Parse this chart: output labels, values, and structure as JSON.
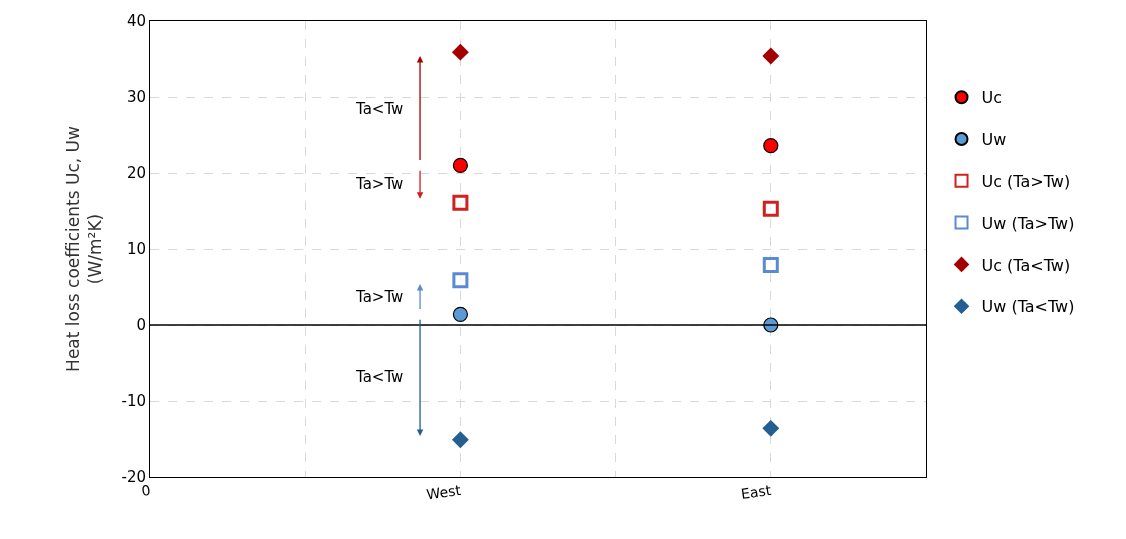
{
  "chart_data": {
    "type": "scatter",
    "ylabel": "Heat loss coefficients Uc, Uw\n(W/m²K)",
    "categories": [
      "0",
      "West",
      "East"
    ],
    "ylim": [
      -20,
      40
    ],
    "yticks": [
      -20,
      -10,
      0,
      10,
      20,
      30,
      40
    ],
    "grid": true,
    "legend": "right",
    "series": [
      {
        "name": "Uc",
        "color": "#ff0000",
        "marker": "circle",
        "values": [
          null,
          21,
          23.6
        ]
      },
      {
        "name": "Uw",
        "color": "#5b9bd5",
        "marker": "circle",
        "values": [
          null,
          1.4,
          0
        ]
      },
      {
        "name": "Uc (Ta>Tw)",
        "color": "#d02020",
        "marker": "square",
        "values": [
          null,
          16.1,
          15.3
        ]
      },
      {
        "name": "Uw (Ta>Tw)",
        "color": "#5b8ad5",
        "marker": "square",
        "values": [
          null,
          5.9,
          7.9
        ]
      },
      {
        "name": "Uc (Ta<Tw)",
        "color": "#a50000",
        "marker": "diamond",
        "values": [
          null,
          35.9,
          35.4
        ]
      },
      {
        "name": "Uw (Ta<Tw)",
        "color": "#255e91",
        "marker": "diamond",
        "values": [
          null,
          -15.1,
          -13.6
        ]
      }
    ],
    "ref_lines": [
      {
        "axis": "y",
        "value": 0,
        "color": "#000000"
      }
    ],
    "annotations": [
      "Ta<Tw",
      "Ta>Tw",
      "Ta>Tw",
      "Ta<Tw"
    ]
  }
}
